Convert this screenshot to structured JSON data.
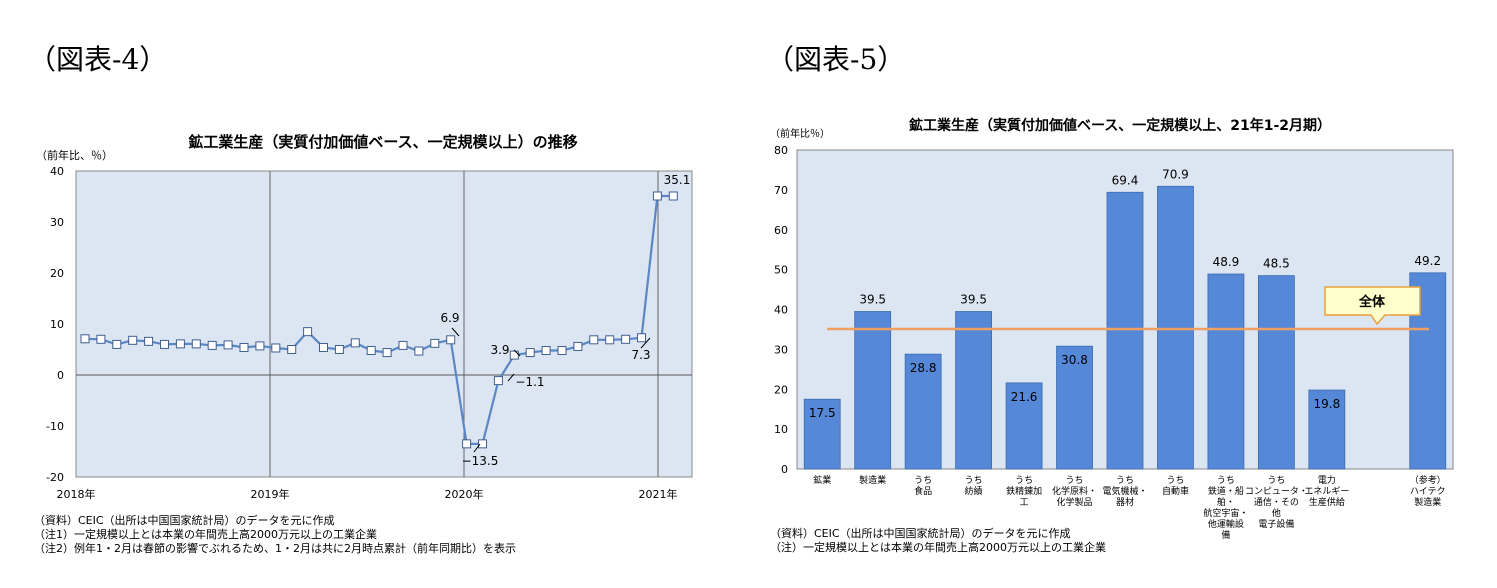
{
  "figure_labels": {
    "left": "（図表-4）",
    "right": "（図表-5）"
  },
  "chart_data": [
    {
      "type": "line",
      "title": "鉱工業生産（実質付加価値ベース、一定規模以上）の推移",
      "ylabel": "（前年比、％）",
      "ylim": [
        -20,
        40
      ],
      "yticks": [
        -20,
        -10,
        0,
        10,
        20,
        30,
        40
      ],
      "xlabels": [
        "2018年",
        "2019年",
        "2020年",
        "2021年"
      ],
      "grid": "vertical lines at year boundaries",
      "series": [
        {
          "values": [
            7.1,
            7.0,
            6.0,
            6.8,
            6.6,
            6.0,
            6.1,
            6.1,
            5.8,
            5.9,
            5.4,
            5.7,
            5.3,
            5.0,
            8.5,
            5.4,
            5.0,
            6.3,
            4.8,
            4.4,
            5.8,
            4.7,
            6.2,
            6.9,
            -13.5,
            -13.5,
            -1.1,
            3.9,
            4.4,
            4.8,
            4.8,
            5.6,
            6.9,
            6.9,
            7.0,
            7.3,
            35.1,
            35.1
          ]
        }
      ],
      "data_labels": [
        {
          "text": "6.9"
        },
        {
          "text": "−13.5"
        },
        {
          "text": "−1.1"
        },
        {
          "text": "3.9"
        },
        {
          "text": "7.3"
        },
        {
          "text": "35.1"
        }
      ],
      "notes": [
        "（資料）CEIC（出所は中国国家統計局）のデータを元に作成",
        "（注1）一定規模以上とは本業の年間売上高2000万元以上の工業企業",
        "（注2）例年1・2月は春節の影響でぶれるため、1・2月は共に2月時点累計（前年同期比）を表示"
      ]
    },
    {
      "type": "bar",
      "title": "鉱工業生産（実質付加価値ベース、一定規模以上、21年1-2月期）",
      "ylabel": "（前年比％）",
      "ylim": [
        0,
        80
      ],
      "yticks": [
        0,
        10,
        20,
        30,
        40,
        50,
        60,
        70,
        80
      ],
      "categories": [
        [
          "鉱業"
        ],
        [
          "製造業"
        ],
        [
          "うち",
          "食品"
        ],
        [
          "うち",
          "紡績"
        ],
        [
          "うち",
          "鉄精錬加",
          "工"
        ],
        [
          "うち",
          "化学原料・",
          "化学製品"
        ],
        [
          "うち",
          "電気機械・",
          "器材"
        ],
        [
          "うち",
          "自動車"
        ],
        [
          "うち",
          "鉄道・船",
          "舶・",
          "航空宇宙・",
          "他運輸設",
          "備"
        ],
        [
          "うち",
          "コンピュータ・",
          "通信・その",
          "他",
          "電子設備"
        ],
        [
          "電力",
          "エネルギー",
          "生産供給"
        ],
        [],
        [
          "（参考）",
          "ハイテク",
          "製造業"
        ]
      ],
      "values": [
        17.5,
        39.5,
        28.8,
        39.5,
        21.6,
        30.8,
        69.4,
        70.9,
        48.9,
        48.5,
        19.8,
        null,
        49.2
      ],
      "value_labels": [
        "17.5",
        "39.5",
        "28.8",
        "39.5",
        "21.6",
        "30.8",
        "69.4",
        "70.9",
        "48.9",
        "48.5",
        "19.8",
        "",
        "49.2"
      ],
      "reference_line": {
        "value": 35.1,
        "label": "全体"
      },
      "colors": {
        "bar": "#5588d7",
        "reference": "#f0a060",
        "plot_bg": "#dce6f2"
      },
      "notes": [
        "（資料）CEIC（出所は中国国家統計局）のデータを元に作成",
        "（注）一定規模以上とは本業の年間売上高2000万元以上の工業企業"
      ]
    }
  ]
}
